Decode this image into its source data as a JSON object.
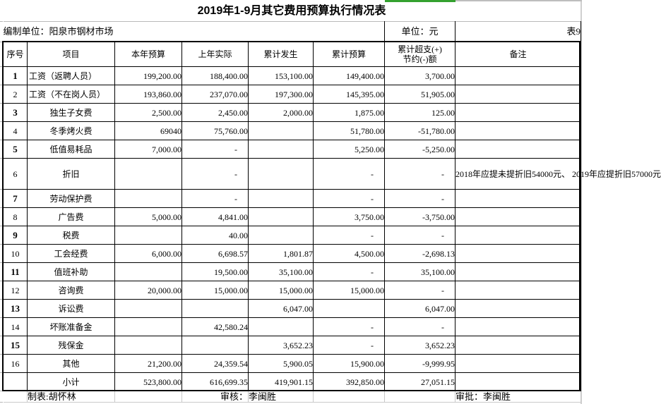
{
  "title": "2019年1-9月其它费用预算执行情况表",
  "colors": {
    "accent_green": "#34a12f",
    "accent_gray": "#bdbdbd"
  },
  "info": {
    "org": "编制单位：阳泉市钢材市场",
    "unit": "单位：元",
    "sheet_no": "表9"
  },
  "table": {
    "headers": {
      "no": "序号",
      "item": "项目",
      "budget": "本年预算",
      "last_year": "上年实际",
      "incurred": "累计发生",
      "cum_budget": "累计预算",
      "variance1": "累计超支(+)",
      "variance2": "节约(-)额",
      "remark": "备注"
    },
    "rows": [
      {
        "no": "1",
        "bold": true,
        "item": "工资（返聘人员）",
        "item_left": true,
        "budget": "199,200.00",
        "last_year": "188,400.00",
        "incurred": "153,100.00",
        "cum_budget": "149,400.00",
        "variance": "3,700.00",
        "remark": ""
      },
      {
        "no": "2",
        "bold": false,
        "item": "工资（不在岗人员）",
        "item_left": true,
        "budget": "193,860.00",
        "last_year": "237,070.00",
        "incurred": "197,300.00",
        "cum_budget": "145,395.00",
        "variance": "51,905.00",
        "remark": ""
      },
      {
        "no": "3",
        "bold": true,
        "item": "独生子女费",
        "budget": "2,500.00",
        "last_year": "2,450.00",
        "incurred": "2,000.00",
        "cum_budget": "1,875.00",
        "variance": "125.00",
        "remark": ""
      },
      {
        "no": "4",
        "bold": false,
        "item": "冬季烤火费",
        "budget": "69040",
        "last_year": "75,760.00",
        "incurred": "",
        "cum_budget": "51,780.00",
        "variance": "-51,780.00",
        "remark": ""
      },
      {
        "no": "5",
        "bold": true,
        "item": "低值易耗品",
        "budget": "7,000.00",
        "last_year": "-",
        "incurred": "",
        "cum_budget": "5,250.00",
        "variance": "-5,250.00",
        "remark": ""
      },
      {
        "no": "6",
        "bold": false,
        "tall": true,
        "item": "折旧",
        "budget": "",
        "last_year": "-",
        "incurred": "",
        "cum_budget": "-",
        "variance": "-",
        "remark": "2018年应提未提折旧54000元、\n2019年应提折旧57000元"
      },
      {
        "no": "7",
        "bold": true,
        "item": "劳动保护费",
        "budget": "",
        "last_year": "-",
        "incurred": "",
        "cum_budget": "-",
        "variance": "-",
        "remark": ""
      },
      {
        "no": "8",
        "bold": false,
        "item": "广告费",
        "budget": "5,000.00",
        "last_year": "4,841.00",
        "incurred": "",
        "cum_budget": "3,750.00",
        "variance": "-3,750.00",
        "remark": ""
      },
      {
        "no": "9",
        "bold": true,
        "item": "税费",
        "budget": "",
        "last_year": "40.00",
        "incurred": "",
        "cum_budget": "-",
        "variance": "-",
        "remark": ""
      },
      {
        "no": "10",
        "bold": false,
        "item": "工会经费",
        "budget": "6,000.00",
        "last_year": "6,698.57",
        "incurred": "1,801.87",
        "cum_budget": "4,500.00",
        "variance": "-2,698.13",
        "remark": ""
      },
      {
        "no": "11",
        "bold": true,
        "item": "值班补助",
        "budget": "",
        "last_year": "19,500.00",
        "incurred": "35,100.00",
        "cum_budget": "-",
        "variance": "35,100.00",
        "remark": ""
      },
      {
        "no": "12",
        "bold": false,
        "item": "咨询费",
        "budget": "20,000.00",
        "last_year": "15,000.00",
        "incurred": "15,000.00",
        "cum_budget": "15,000.00",
        "variance": "-",
        "remark": ""
      },
      {
        "no": "13",
        "bold": true,
        "item": "诉讼费",
        "budget": "",
        "last_year": "",
        "incurred": "6,047.00",
        "cum_budget": "",
        "variance": "6,047.00",
        "remark": ""
      },
      {
        "no": "14",
        "bold": false,
        "item": "坏账准备金",
        "budget": "",
        "last_year": "42,580.24",
        "incurred": "",
        "cum_budget": "-",
        "variance": "-",
        "remark": ""
      },
      {
        "no": "15",
        "bold": true,
        "item": "残保金",
        "budget": "",
        "last_year": "",
        "incurred": "3,652.23",
        "cum_budget": "-",
        "variance": "3,652.23",
        "remark": ""
      },
      {
        "no": "16",
        "bold": false,
        "item": "其他",
        "budget": "21,200.00",
        "last_year": "24,359.54",
        "incurred": "5,900.05",
        "cum_budget": "15,900.00",
        "variance": "-9,999.95",
        "remark": ""
      }
    ],
    "subtotal": {
      "no": "",
      "item": "小计",
      "budget": "523,800.00",
      "last_year": "616,699.35",
      "incurred": "419,901.15",
      "cum_budget": "392,850.00",
      "variance": "27,051.15",
      "remark": ""
    }
  },
  "footer": {
    "maker": "制表:胡怀林",
    "checker_label": "审核：",
    "checker_name": "李闽胜",
    "approver": "审批：李闽胜"
  }
}
